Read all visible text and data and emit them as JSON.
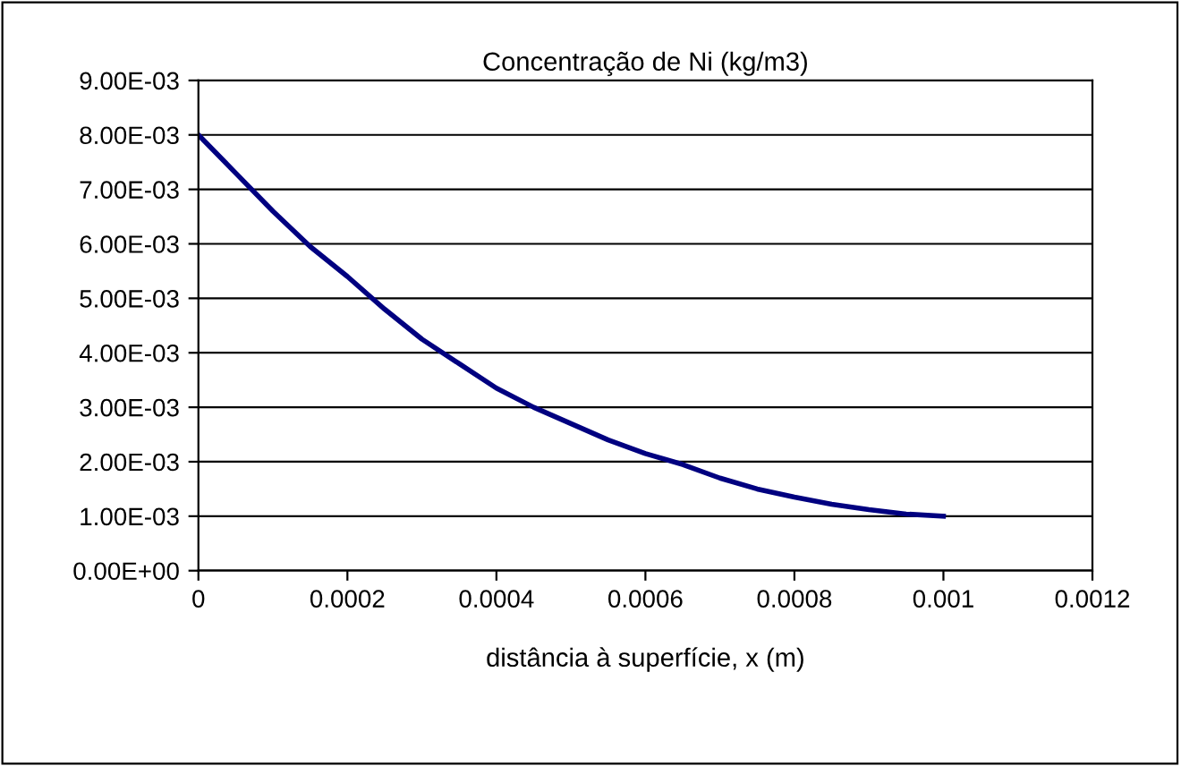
{
  "chart_data": {
    "type": "line",
    "title": "Concentração de Ni (kg/m3)",
    "xlabel": "distância à superfície, x (m)",
    "series": [
      {
        "color": "#000080",
        "x": [
          0,
          5e-05,
          0.0001,
          0.00015,
          0.0002,
          0.00025,
          0.0003,
          0.00035,
          0.0004,
          0.00045,
          0.0005,
          0.00055,
          0.0006,
          0.00065,
          0.0007,
          0.00075,
          0.0008,
          0.00085,
          0.0009,
          0.00095,
          0.001
        ],
        "values": [
          0.008,
          0.0073,
          0.0066,
          0.00595,
          0.0054,
          0.0048,
          0.00425,
          0.0038,
          0.00335,
          0.003,
          0.0027,
          0.0024,
          0.00215,
          0.00195,
          0.0017,
          0.0015,
          0.00135,
          0.00122,
          0.00112,
          0.00104,
          0.001
        ]
      }
    ],
    "xlim": [
      0,
      0.0012
    ],
    "xticks": [
      0,
      0.0002,
      0.0004,
      0.0006,
      0.0008,
      0.001,
      0.0012
    ],
    "ylim": [
      0,
      0.009
    ],
    "yticks": [
      {
        "value": 0,
        "label": "0.00E+00"
      },
      {
        "value": 0.001,
        "label": "1.00E-03"
      },
      {
        "value": 0.002,
        "label": "2.00E-03"
      },
      {
        "value": 0.003,
        "label": "3.00E-03"
      },
      {
        "value": 0.004,
        "label": "4.00E-03"
      },
      {
        "value": 0.005,
        "label": "5.00E-03"
      },
      {
        "value": 0.006,
        "label": "6.00E-03"
      },
      {
        "value": 0.007,
        "label": "7.00E-03"
      },
      {
        "value": 0.008,
        "label": "8.00E-03"
      },
      {
        "value": 0.009,
        "label": "9.00E-03"
      }
    ],
    "grid": "y",
    "marker": "none",
    "line_style": "solid"
  }
}
